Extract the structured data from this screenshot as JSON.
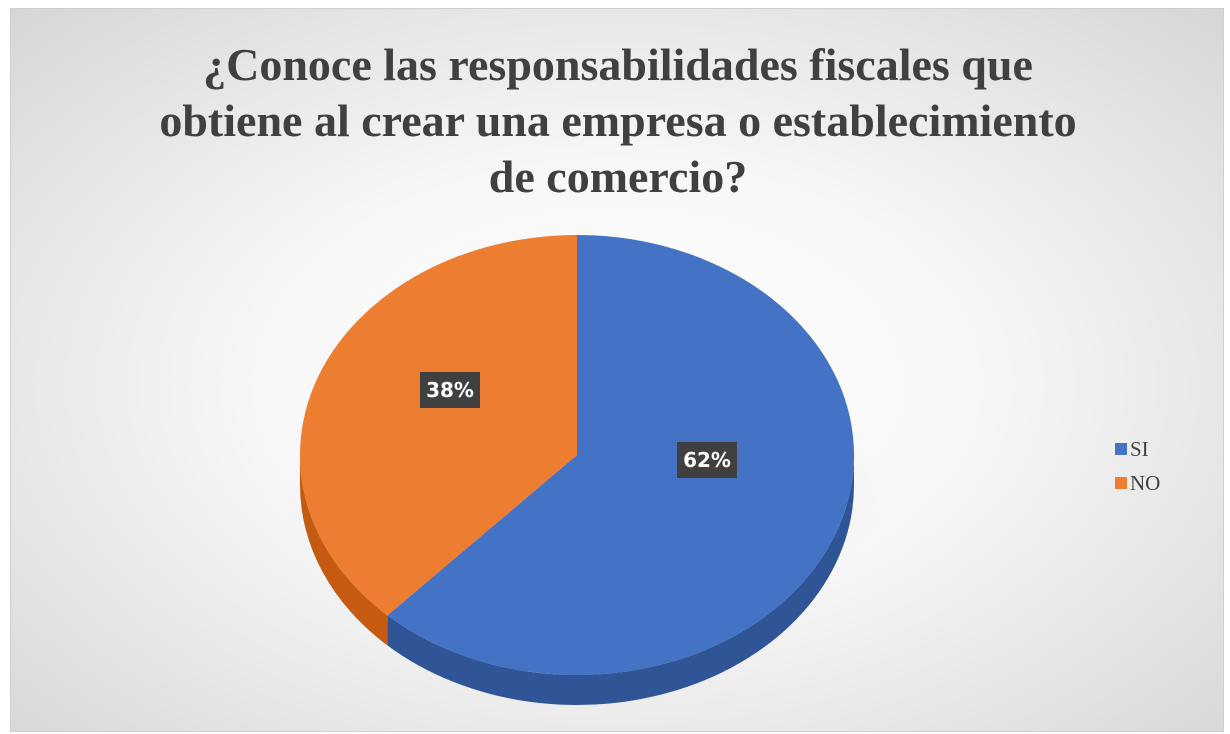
{
  "chart_data": {
    "type": "pie",
    "title": "¿Conoce las responsabilidades fiscales que obtiene al crear una empresa o establecimiento de comercio?",
    "title_lines": [
      "¿Conoce las responsabilidades fiscales que",
      "obtiene al crear una empresa o establecimiento",
      "de comercio?"
    ],
    "categories": [
      "SI",
      "NO"
    ],
    "values": [
      62,
      38
    ],
    "labels": [
      "62%",
      "38%"
    ],
    "colors": [
      "#4472c4",
      "#ed7d31"
    ],
    "dark_colors": [
      "#2f5597",
      "#c55a11"
    ],
    "style": "3d-pie",
    "legend_placement": "right"
  }
}
